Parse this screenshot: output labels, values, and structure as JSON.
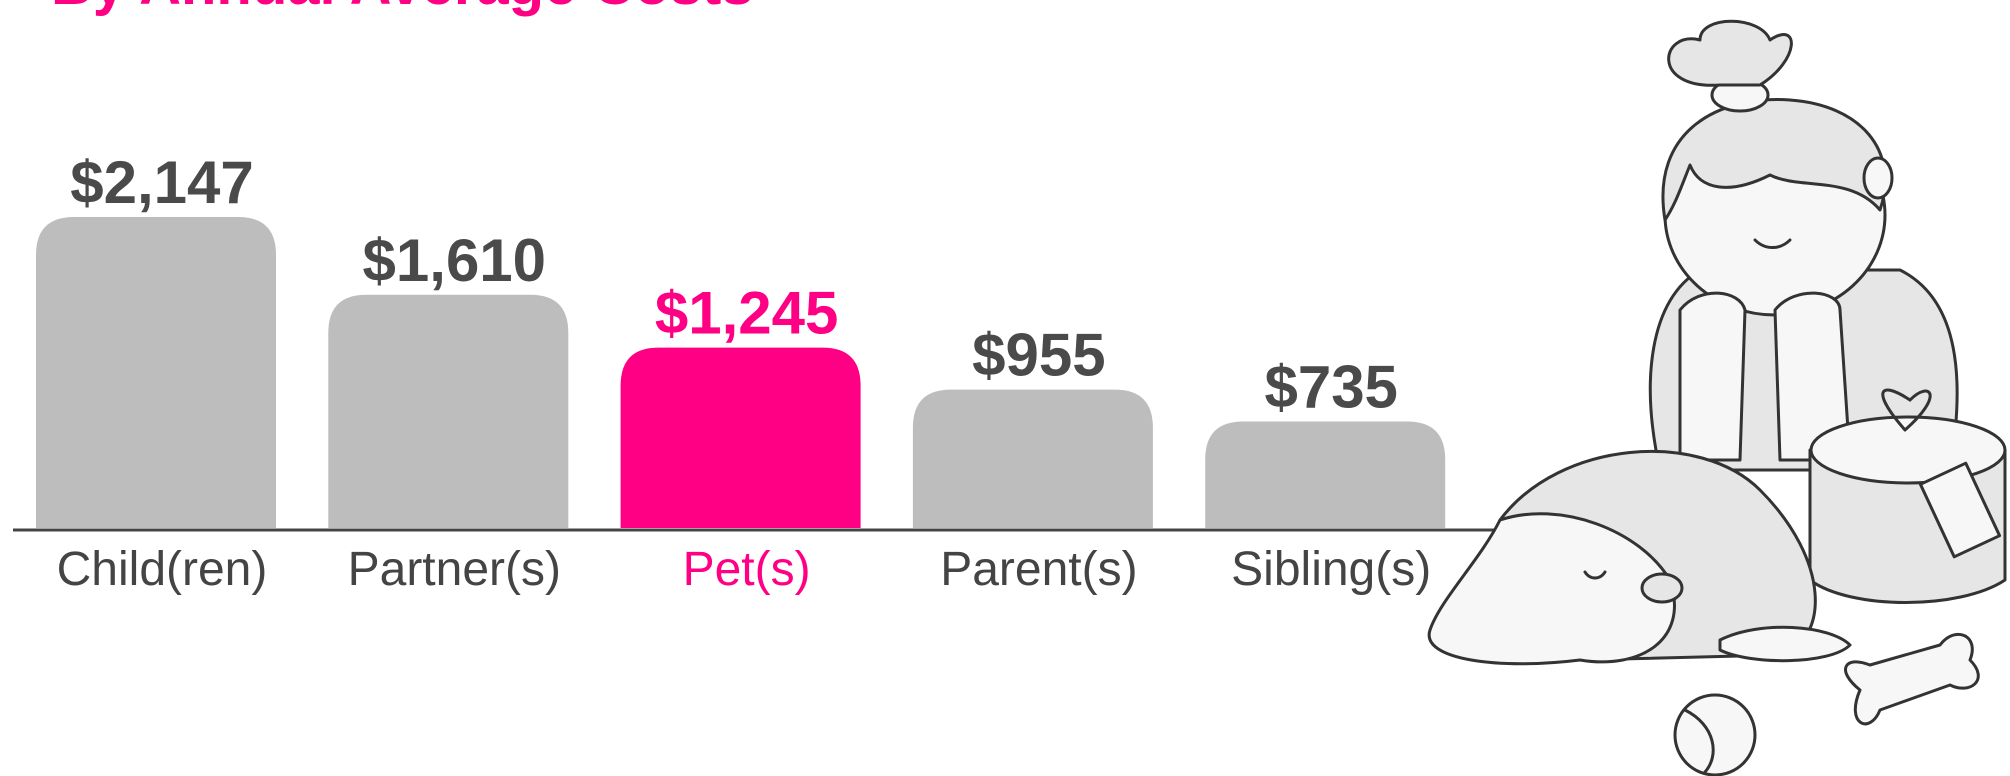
{
  "chart_data": {
    "type": "bar",
    "subtitle": "By Annual Average Costs",
    "subtitle_color": "#ff0084",
    "categories": [
      "Child(ren)",
      "Partner(s)",
      "Pet(s)",
      "Parent(s)",
      "Sibling(s)"
    ],
    "values": [
      2147,
      1610,
      1245,
      955,
      735
    ],
    "value_labels": [
      "$2,147",
      "$1,610",
      "$1,245",
      "$955",
      "$735"
    ],
    "colors": [
      "#bdbdbd",
      "#bdbdbd",
      "#ff0084",
      "#bdbdbd",
      "#bdbdbd"
    ],
    "label_colors": [
      "#444444",
      "#444444",
      "#ff0084",
      "#444444",
      "#444444"
    ]
  }
}
